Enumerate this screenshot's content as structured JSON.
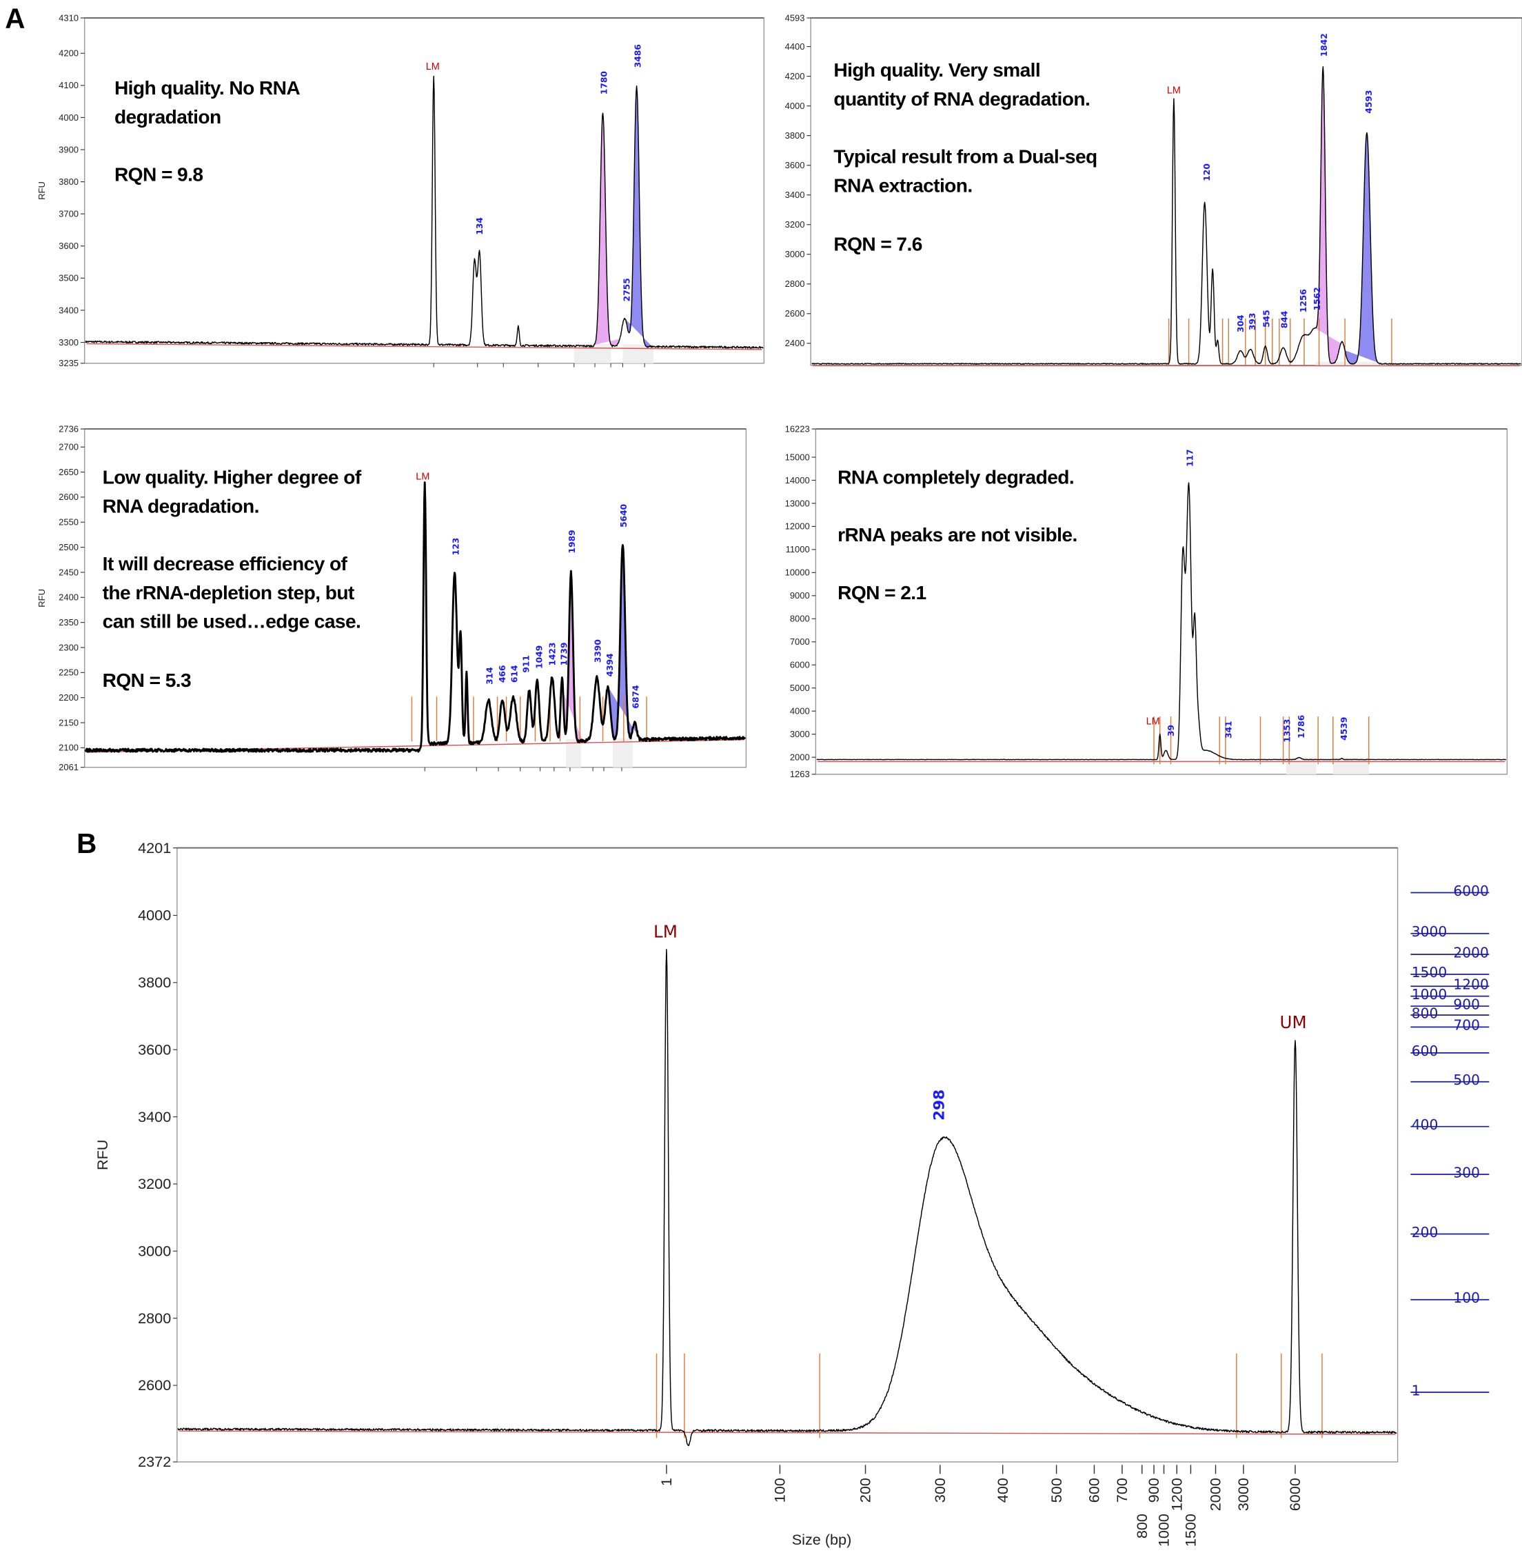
{
  "panel_labels": [
    "A",
    "B"
  ],
  "chart_data": [
    {
      "panel": "A",
      "position": "top-left",
      "type": "line",
      "ylabel": "RFU",
      "ylim": [
        3235,
        4310
      ],
      "yticks": [
        "4310",
        "4200",
        "4100",
        "4000",
        "3900",
        "3800",
        "3700",
        "3600",
        "3500",
        "3400",
        "3300",
        "3235"
      ],
      "annotation": [
        "High quality. No RNA",
        "degradation",
        "RQN = 9.8"
      ],
      "peaks": [
        {
          "label": "LM",
          "rfu": 4130
        },
        {
          "label": "",
          "rfu": 3555
        },
        {
          "label": "134",
          "rfu": 3580
        },
        {
          "label": "",
          "rfu": 3350
        },
        {
          "label": "1780",
          "rfu": 4015
        },
        {
          "label": "2755",
          "rfu": 3375
        },
        {
          "label": "3486",
          "rfu": 4095
        }
      ],
      "colors": {
        "trace": "#000000",
        "rRNA_18S_fill": "#e59bef",
        "rRNA_28S_fill": "#7b78ee",
        "baseline": "#e05050"
      }
    },
    {
      "panel": "A",
      "position": "top-right",
      "type": "line",
      "ylabel": "",
      "ylim": [
        2252,
        4593
      ],
      "yticks": [
        "4593",
        "4400",
        "4200",
        "4000",
        "3800",
        "3600",
        "3400",
        "3200",
        "3000",
        "2800",
        "2600",
        "2400"
      ],
      "annotation": [
        "High quality. Very small",
        "quantity of RNA degradation.",
        "Typical result from a Dual-seq",
        "RNA extraction.",
        "RQN = 7.6"
      ],
      "peaks": [
        {
          "label": "LM",
          "rfu": 4050
        },
        {
          "label": "120",
          "rfu": 3350
        },
        {
          "label": "",
          "rfu": 2900
        },
        {
          "label": "",
          "rfu": 2420
        },
        {
          "label": "304",
          "rfu": 2350
        },
        {
          "label": "393",
          "rfu": 2360
        },
        {
          "label": "545",
          "rfu": 2380
        },
        {
          "label": "844",
          "rfu": 2370
        },
        {
          "label": "1256",
          "rfu": 2440
        },
        {
          "label": "1562",
          "rfu": 2490
        },
        {
          "label": "1842",
          "rfu": 4200
        },
        {
          "label": "",
          "rfu": 2410
        },
        {
          "label": "4593",
          "rfu": 3820
        }
      ],
      "colors": {
        "trace": "#000000",
        "rRNA_18S_fill": "#e59bef",
        "rRNA_28S_fill": "#7b78ee",
        "baseline": "#e05050"
      }
    },
    {
      "panel": "A",
      "position": "bottom-left",
      "type": "line",
      "ylabel": "RFU",
      "ylim": [
        2061,
        2736
      ],
      "yticks": [
        "2736",
        "2700",
        "2650",
        "2600",
        "2550",
        "2500",
        "2450",
        "2400",
        "2350",
        "2300",
        "2250",
        "2200",
        "2150",
        "2100",
        "2061"
      ],
      "annotation": [
        "Low quality. Higher degree of",
        "RNA degradation.",
        "It will decrease efficiency of",
        "the rRNA-depletion step, but",
        "can still be used…edge case.",
        "RQN = 5.3"
      ],
      "peaks": [
        {
          "label": "LM",
          "rfu": 2630
        },
        {
          "label": "123",
          "rfu": 2450
        },
        {
          "label": "",
          "rfu": 2320
        },
        {
          "label": "",
          "rfu": 2250
        },
        {
          "label": "314",
          "rfu": 2195
        },
        {
          "label": "466",
          "rfu": 2195
        },
        {
          "label": "614",
          "rfu": 2200
        },
        {
          "label": "911",
          "rfu": 2215
        },
        {
          "label": "1049",
          "rfu": 2235
        },
        {
          "label": "1423",
          "rfu": 2240
        },
        {
          "label": "1739",
          "rfu": 2240
        },
        {
          "label": "1989",
          "rfu": 2450
        },
        {
          "label": "3390",
          "rfu": 2240
        },
        {
          "label": "4394",
          "rfu": 2220
        },
        {
          "label": "5640",
          "rfu": 2505
        },
        {
          "label": "6874",
          "rfu": 2150
        }
      ],
      "colors": {
        "trace": "#000000",
        "rRNA_18S_fill": "#e59bef",
        "rRNA_28S_fill": "#7b78ee",
        "baseline": "#e05050"
      }
    },
    {
      "panel": "A",
      "position": "bottom-right",
      "type": "line",
      "ylabel": "",
      "ylim": [
        1263,
        16223
      ],
      "yticks": [
        "16223",
        "15000",
        "14000",
        "13000",
        "12000",
        "11000",
        "10000",
        "9000",
        "8000",
        "7000",
        "6000",
        "5000",
        "4000",
        "3000",
        "2000",
        "1263"
      ],
      "annotation": [
        "RNA completely degraded.",
        "rRNA peaks are not visible.",
        "RQN = 2.1"
      ],
      "peaks": [
        {
          "label": "LM",
          "rfu": 3000
        },
        {
          "label": "39",
          "rfu": 2300
        },
        {
          "label": "",
          "rfu": 10500
        },
        {
          "label": "117",
          "rfu": 13700
        },
        {
          "label": "",
          "rfu": 7000
        },
        {
          "label": "",
          "rfu": 3500
        },
        {
          "label": "341",
          "rfu": 2300
        },
        {
          "label": "1353",
          "rfu": 1900
        },
        {
          "label": "1786",
          "rfu": 1990
        },
        {
          "label": "4539",
          "rfu": 1950
        }
      ],
      "colors": {
        "trace": "#000000",
        "baseline": "#e05050"
      }
    },
    {
      "panel": "B",
      "type": "line",
      "ylabel": "RFU",
      "xlabel": "Size (bp)",
      "ylim": [
        2372,
        4201
      ],
      "yticks": [
        "4201",
        "4000",
        "3800",
        "3600",
        "3400",
        "3200",
        "3000",
        "2800",
        "2600",
        "2372"
      ],
      "xticks": [
        "1",
        "100",
        "200",
        "300",
        "400",
        "500",
        "600",
        "700",
        "800",
        "900",
        "1000",
        "1200",
        "1500",
        "2000",
        "3000",
        "6000"
      ],
      "annotation": [],
      "peaks": [
        {
          "label": "LM",
          "rfu": 3900
        },
        {
          "label": "",
          "rfu": 2420
        },
        {
          "label": "298",
          "rfu": 3290
        },
        {
          "label": "UM",
          "rfu": 3630
        }
      ],
      "ladder": [
        "6000",
        "3000",
        "2000",
        "1500",
        "1200",
        "1000",
        "900",
        "800",
        "700",
        "600",
        "500",
        "400",
        "300",
        "200",
        "100",
        "1"
      ],
      "colors": {
        "trace": "#000000",
        "ladder": "#1a1aa8",
        "baseline": "#e05050",
        "markers": "#8b0000"
      }
    }
  ]
}
